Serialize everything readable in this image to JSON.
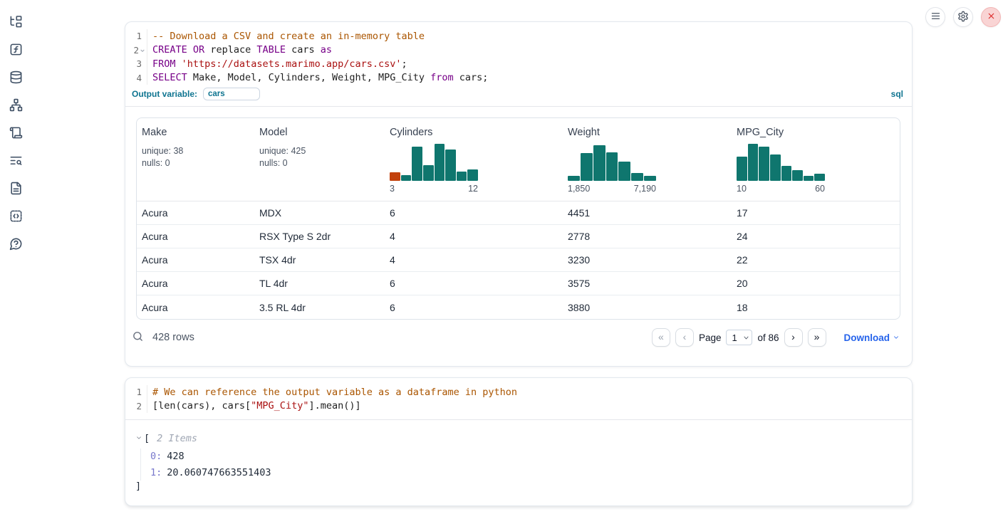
{
  "theme": {
    "accent_blue": "#0e7490",
    "link_blue": "#2563eb",
    "hist_teal": "#0f766e",
    "hist_orange": "#c2410c",
    "close_red": "#dc2626"
  },
  "sidebar": {
    "icons": [
      "file-tree",
      "function-square",
      "database",
      "dependency-graph",
      "scroll",
      "log-search",
      "document",
      "code-snippets",
      "help"
    ]
  },
  "topbar": {
    "buttons": [
      "menu",
      "settings",
      "close"
    ]
  },
  "cells": [
    {
      "language_badge": "sql",
      "output_variable_label": "Output variable:",
      "output_variable_value": "cars",
      "lines": [
        {
          "num": "1",
          "tokens": [
            {
              "type": "comment",
              "text": "-- Download a CSV and create an in-memory table"
            }
          ]
        },
        {
          "num": "2",
          "tokens": [
            {
              "type": "keyword",
              "text": "CREATE"
            },
            {
              "type": "plain",
              "text": " "
            },
            {
              "type": "keyword",
              "text": "OR"
            },
            {
              "type": "plain",
              "text": " replace "
            },
            {
              "type": "keyword",
              "text": "TABLE"
            },
            {
              "type": "plain",
              "text": " cars "
            },
            {
              "type": "keyword",
              "text": "as"
            }
          ]
        },
        {
          "num": "3",
          "tokens": [
            {
              "type": "keyword",
              "text": "FROM"
            },
            {
              "type": "plain",
              "text": " "
            },
            {
              "type": "string",
              "text": "'https://datasets.marimo.app/cars.csv'"
            },
            {
              "type": "plain",
              "text": ";"
            }
          ]
        },
        {
          "num": "4",
          "tokens": [
            {
              "type": "keyword",
              "text": "SELECT"
            },
            {
              "type": "plain",
              "text": " Make, Model, Cylinders, Weight, MPG_City "
            },
            {
              "type": "keyword",
              "text": "from"
            },
            {
              "type": "plain",
              "text": " cars;"
            }
          ]
        }
      ]
    },
    {
      "lines": [
        {
          "num": "1",
          "tokens": [
            {
              "type": "comment",
              "text": "# We can reference the output variable as a dataframe in python"
            }
          ]
        },
        {
          "num": "2",
          "tokens": [
            {
              "type": "plain",
              "text": "[len(cars), cars["
            },
            {
              "type": "string",
              "text": "\"MPG_City\""
            },
            {
              "type": "plain",
              "text": "].mean()]"
            }
          ]
        }
      ]
    }
  ],
  "table": {
    "columns": [
      {
        "name": "Make",
        "stats": [
          "unique: 38",
          "nulls: 0"
        ]
      },
      {
        "name": "Model",
        "stats": [
          "unique: 425",
          "nulls: 0"
        ]
      },
      {
        "name": "Cylinders",
        "hist": {
          "heights": [
            12,
            8,
            48,
            22,
            52,
            44,
            13,
            16
          ],
          "colors": [
            "#c2410c",
            "#0f766e",
            "#0f766e",
            "#0f766e",
            "#0f766e",
            "#0f766e",
            "#0f766e",
            "#0f766e"
          ],
          "min_label": "3",
          "max_label": "12"
        }
      },
      {
        "name": "Weight",
        "hist": {
          "heights": [
            7,
            39,
            50,
            40,
            27,
            11,
            7
          ],
          "colors": [
            "#0f766e",
            "#0f766e",
            "#0f766e",
            "#0f766e",
            "#0f766e",
            "#0f766e",
            "#0f766e"
          ],
          "min_label": "1,850",
          "max_label": "7,190"
        }
      },
      {
        "name": "MPG_City",
        "hist": {
          "heights": [
            34,
            52,
            48,
            37,
            21,
            15,
            7,
            10
          ],
          "colors": [
            "#0f766e",
            "#0f766e",
            "#0f766e",
            "#0f766e",
            "#0f766e",
            "#0f766e",
            "#0f766e",
            "#0f766e"
          ],
          "min_label": "10",
          "max_label": "60"
        }
      }
    ],
    "rows": [
      [
        "Acura",
        "MDX",
        "6",
        "4451",
        "17"
      ],
      [
        "Acura",
        "RSX Type S 2dr",
        "4",
        "2778",
        "24"
      ],
      [
        "Acura",
        "TSX 4dr",
        "4",
        "3230",
        "22"
      ],
      [
        "Acura",
        "TL 4dr",
        "6",
        "3575",
        "20"
      ],
      [
        "Acura",
        "3.5 RL 4dr",
        "6",
        "3880",
        "18"
      ]
    ],
    "footer": {
      "row_count": "428 rows",
      "page_label": "Page",
      "page_value": "1",
      "of_label": "of 86",
      "download_label": "Download",
      "pagination": {
        "first_icon": "«",
        "prev_icon": "‹",
        "next_icon": "›",
        "last_icon": "»"
      }
    }
  },
  "output_tree": {
    "open_bracket": "[",
    "items_label": "2 Items",
    "entries": [
      {
        "key": "0:",
        "value": "428"
      },
      {
        "key": "1:",
        "value": "20.060747663551403"
      }
    ],
    "close_bracket": "]"
  }
}
